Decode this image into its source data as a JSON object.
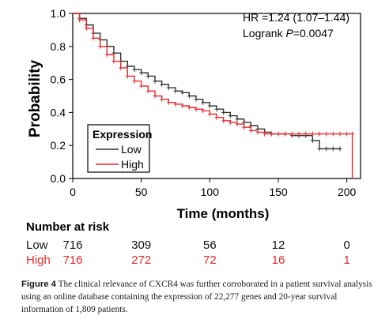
{
  "chart_data": {
    "type": "line",
    "ylabel": "Probability",
    "xlabel": "Time (months)",
    "xlim": [
      0,
      210
    ],
    "ylim": [
      0,
      1.0
    ],
    "xticks": [
      "0",
      "50",
      "100",
      "150",
      "200"
    ],
    "yticks": [
      "0.0",
      "0.2",
      "0.4",
      "0.6",
      "0.8",
      "1.0"
    ],
    "annotation": {
      "hr": "HR =1.24 (1.07–1.44)",
      "logrank_prefix": "Logrank ",
      "logrank_p": "P",
      "logrank_value": "=0.0047"
    },
    "legend": {
      "title": "Expression",
      "position": "bottom-left"
    },
    "series": [
      {
        "name": "Low",
        "color": "#333333",
        "x": [
          0,
          5,
          10,
          15,
          20,
          25,
          30,
          35,
          40,
          45,
          50,
          55,
          60,
          65,
          70,
          75,
          80,
          85,
          90,
          95,
          100,
          105,
          110,
          115,
          120,
          125,
          130,
          135,
          140,
          145,
          150,
          155,
          160,
          165,
          170,
          175,
          180,
          185,
          190,
          195
        ],
        "y": [
          1.0,
          0.97,
          0.93,
          0.88,
          0.84,
          0.8,
          0.76,
          0.71,
          0.68,
          0.66,
          0.64,
          0.62,
          0.59,
          0.57,
          0.55,
          0.53,
          0.52,
          0.5,
          0.48,
          0.46,
          0.44,
          0.42,
          0.4,
          0.38,
          0.36,
          0.34,
          0.32,
          0.3,
          0.28,
          0.27,
          0.27,
          0.27,
          0.26,
          0.26,
          0.26,
          0.23,
          0.18,
          0.18,
          0.18,
          0.18
        ]
      },
      {
        "name": "High",
        "color": "#e8292b",
        "x": [
          0,
          5,
          10,
          15,
          20,
          25,
          30,
          35,
          40,
          45,
          50,
          55,
          60,
          65,
          70,
          75,
          80,
          85,
          90,
          95,
          100,
          105,
          110,
          115,
          120,
          125,
          130,
          135,
          140,
          145,
          150,
          155,
          160,
          165,
          170,
          175,
          180,
          185,
          190,
          195,
          200,
          204,
          204
        ],
        "y": [
          1.0,
          0.96,
          0.91,
          0.85,
          0.8,
          0.75,
          0.71,
          0.67,
          0.62,
          0.59,
          0.56,
          0.53,
          0.5,
          0.48,
          0.46,
          0.45,
          0.44,
          0.43,
          0.42,
          0.41,
          0.39,
          0.37,
          0.35,
          0.34,
          0.33,
          0.31,
          0.29,
          0.28,
          0.27,
          0.27,
          0.27,
          0.27,
          0.27,
          0.27,
          0.27,
          0.27,
          0.27,
          0.27,
          0.27,
          0.27,
          0.27,
          0.27,
          0.0
        ]
      }
    ]
  },
  "risk_table": {
    "title": "Number at risk",
    "times": [
      0,
      50,
      100,
      150,
      200
    ],
    "rows": [
      {
        "label": "Low",
        "color": "#111111",
        "values": [
          "716",
          "309",
          "56",
          "12",
          "0"
        ]
      },
      {
        "label": "High",
        "color": "#e8292b",
        "values": [
          "716",
          "272",
          "72",
          "16",
          "1"
        ]
      }
    ]
  },
  "caption": {
    "label": "Figure 4",
    "text": "The clinical relevance of CXCR4 was further corroborated in a patient survival analysis using an online database containing the expression of 22,277 genes and 20-year survival information of 1,809 patients."
  }
}
